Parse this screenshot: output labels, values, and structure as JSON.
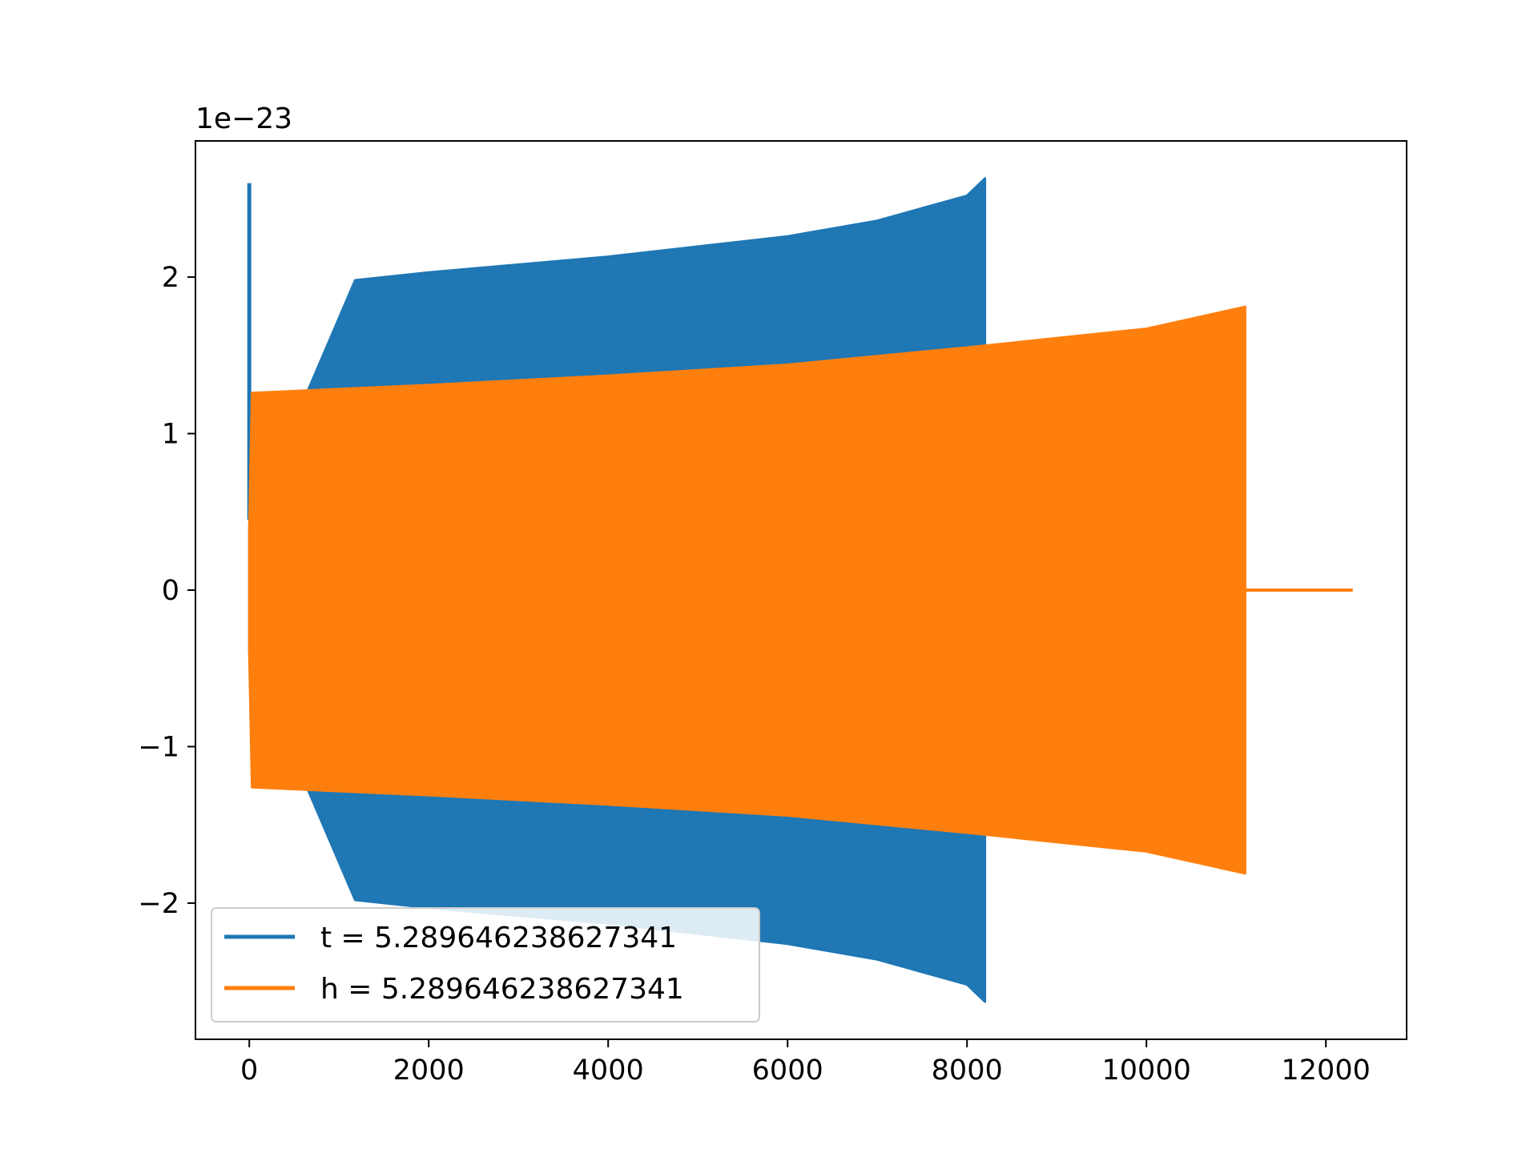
{
  "chart_data": {
    "type": "line",
    "title": "",
    "xlabel": "",
    "ylabel": "",
    "y_offset_label": "1e−23",
    "y_scale": 1e-23,
    "xlim": [
      -600,
      12900
    ],
    "ylim": [
      -2.87,
      2.87
    ],
    "xticks": [
      0,
      2000,
      4000,
      6000,
      8000,
      10000,
      12000
    ],
    "xtick_labels": [
      "0",
      "2000",
      "4000",
      "6000",
      "8000",
      "10000",
      "12000"
    ],
    "yticks": [
      -2,
      -1,
      0,
      1,
      2
    ],
    "ytick_labels": [
      "−2",
      "−1",
      "0",
      "1",
      "2"
    ],
    "grid": false,
    "legend_position": "lower-left",
    "series": [
      {
        "name": "t = 5.289646238627341",
        "color": "#1f77b4",
        "envelope": {
          "x": [
            0,
            1180,
            2000,
            4000,
            6000,
            7000,
            8000,
            8200
          ],
          "amplitude": [
            0.4,
            1.98,
            2.03,
            2.13,
            2.26,
            2.36,
            2.52,
            2.63
          ]
        },
        "spikes": [
          {
            "x": 0,
            "y_min": 0.45,
            "y_max": 2.6
          },
          {
            "x": 1150,
            "y_min": -1.5,
            "y_max": 1.52
          }
        ]
      },
      {
        "name": "h = 5.289646238627341",
        "color": "#ff7f0e",
        "envelope": {
          "x": [
            0,
            30,
            2000,
            4000,
            6000,
            8000,
            10000,
            11100
          ],
          "amplitude": [
            0.4,
            1.26,
            1.31,
            1.37,
            1.44,
            1.55,
            1.67,
            1.81
          ]
        },
        "tail": {
          "x": [
            11100,
            12300
          ],
          "y": [
            0,
            0
          ]
        }
      }
    ]
  }
}
